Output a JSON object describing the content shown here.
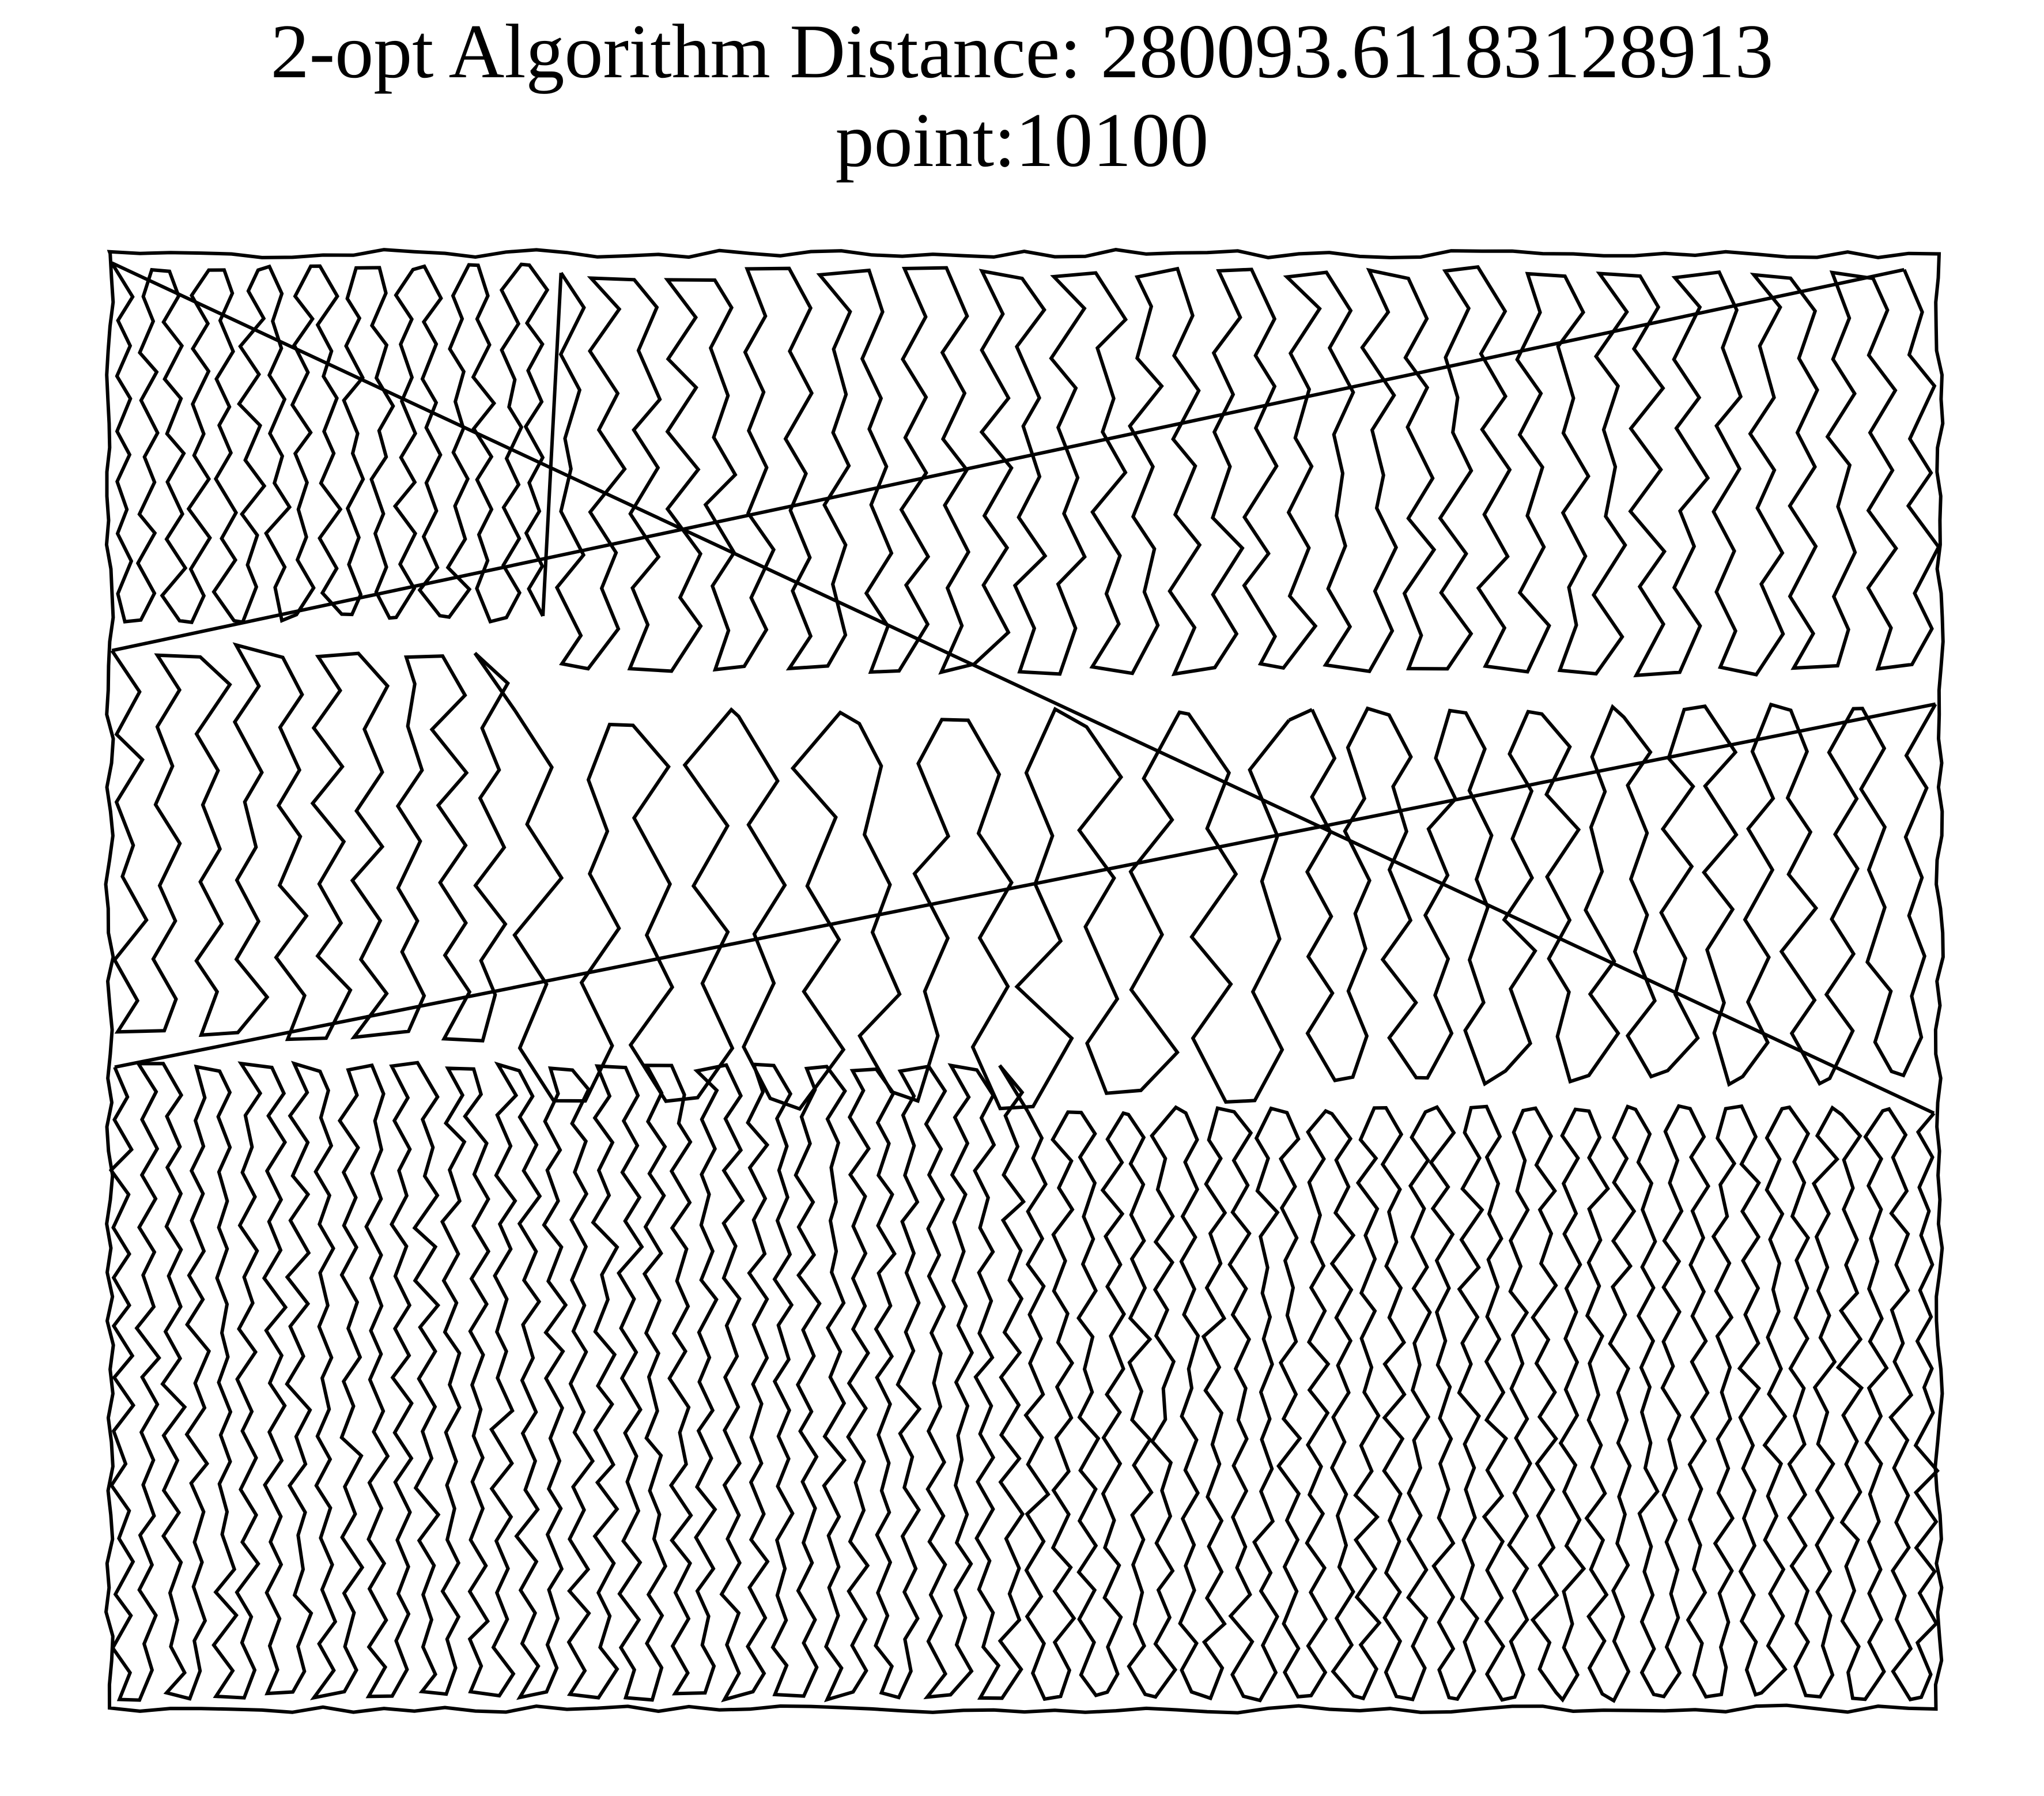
{
  "chart_data": {
    "type": "line",
    "title_line1": "2-opt Algorithm Distance: 280093.61183128913",
    "title_line2": "point:10100",
    "xlabel": "",
    "ylabel": "",
    "axes_visible": false,
    "grid": false,
    "series": [
      {
        "name": "",
        "color": "#000000",
        "closed": true,
        "regions": [
          {
            "x0": 0.0,
            "x1": 0.24,
            "y0": 0.0,
            "y1": 0.26,
            "density": "high"
          },
          {
            "x0": 0.24,
            "x1": 1.0,
            "y0": 0.0,
            "y1": 0.3,
            "density": "medium"
          },
          {
            "x0": 0.0,
            "x1": 0.22,
            "y0": 0.26,
            "y1": 0.55,
            "density": "medium"
          },
          {
            "x0": 0.22,
            "x1": 0.65,
            "y0": 0.3,
            "y1": 0.6,
            "density": "low"
          },
          {
            "x0": 0.65,
            "x1": 1.0,
            "y0": 0.3,
            "y1": 0.58,
            "density": "medium"
          },
          {
            "x0": 0.0,
            "x1": 0.5,
            "y0": 0.55,
            "y1": 1.0,
            "density": "high"
          },
          {
            "x0": 0.5,
            "x1": 1.0,
            "y0": 0.58,
            "y1": 1.0,
            "density": "high"
          }
        ]
      }
    ]
  }
}
